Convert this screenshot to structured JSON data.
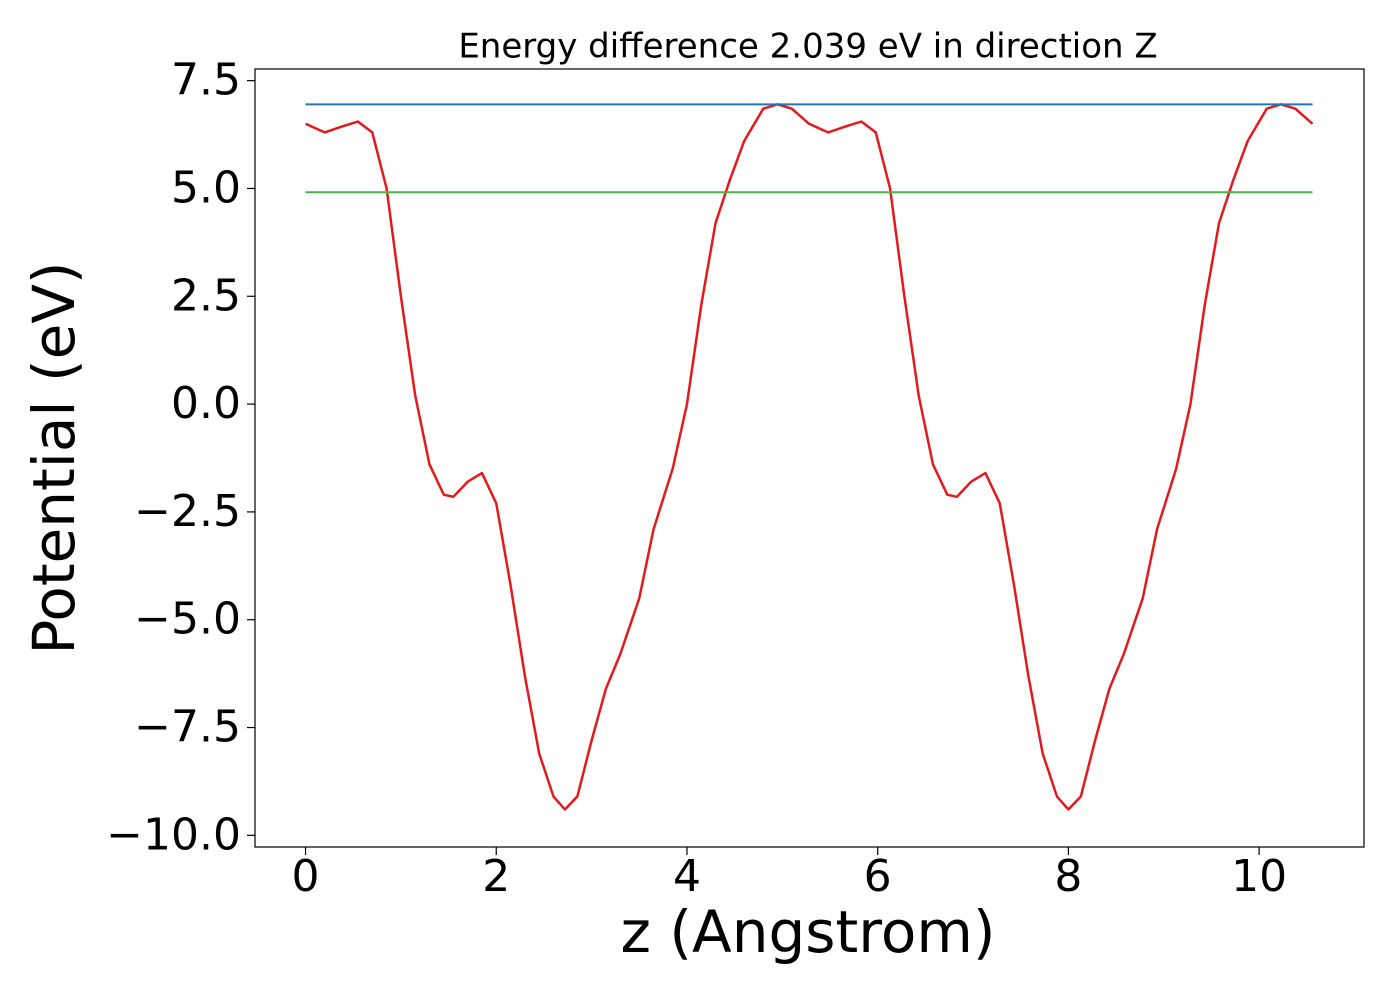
{
  "chart_data": {
    "type": "line",
    "title": "Energy difference 2.039 eV in direction Z",
    "xlabel": "z (Angstrom)",
    "ylabel": "Potential (eV)",
    "xlim": [
      -0.53,
      11.1
    ],
    "ylim": [
      -10.27,
      7.77
    ],
    "xticks": [
      0,
      2,
      4,
      6,
      8,
      10
    ],
    "yticks": [
      {
        "value": -10,
        "label": "−10.0"
      },
      {
        "value": -7.5,
        "label": "−7.5"
      },
      {
        "value": -5,
        "label": "−5.0"
      },
      {
        "value": -2.5,
        "label": "−2.5"
      },
      {
        "value": 0,
        "label": "0.0"
      },
      2.5,
      {
        "value": 5,
        "label": "5.0"
      },
      7.5
    ],
    "grid": false,
    "series": [
      {
        "color": "#e31a1c",
        "x": [
          0,
          0.2,
          0.4,
          0.55,
          0.7,
          0.85,
          1.0,
          1.15,
          1.3,
          1.45,
          1.55,
          1.7,
          1.85,
          2.0,
          2.15,
          2.3,
          2.45,
          2.6,
          2.72,
          2.85,
          3.0,
          3.15,
          3.3,
          3.5,
          3.65,
          3.85,
          4.0,
          4.15,
          4.3,
          4.45,
          4.6,
          4.8,
          4.95,
          5.1,
          5.28,
          5.48,
          5.68,
          5.83,
          5.98,
          6.13,
          6.28,
          6.43,
          6.58,
          6.73,
          6.83,
          6.98,
          7.13,
          7.28,
          7.43,
          7.58,
          7.73,
          7.88,
          8.0,
          8.13,
          8.28,
          8.43,
          8.58,
          8.78,
          8.93,
          9.13,
          9.28,
          9.43,
          9.58,
          9.73,
          9.88,
          10.08,
          10.23,
          10.38,
          10.56
        ],
        "values": [
          6.5,
          6.3,
          6.45,
          6.55,
          6.3,
          5.0,
          2.5,
          0.2,
          -1.4,
          -2.1,
          -2.15,
          -1.8,
          -1.6,
          -2.3,
          -4.2,
          -6.3,
          -8.1,
          -9.1,
          -9.4,
          -9.1,
          -7.8,
          -6.6,
          -5.8,
          -4.5,
          -2.9,
          -1.5,
          0.0,
          2.3,
          4.2,
          5.2,
          6.1,
          6.85,
          6.95,
          6.85,
          6.5,
          6.3,
          6.45,
          6.55,
          6.3,
          5.0,
          2.5,
          0.2,
          -1.4,
          -2.1,
          -2.15,
          -1.8,
          -1.6,
          -2.3,
          -4.2,
          -6.3,
          -8.1,
          -9.1,
          -9.4,
          -9.1,
          -7.8,
          -6.6,
          -5.8,
          -4.5,
          -2.9,
          -1.5,
          0.0,
          2.3,
          4.2,
          5.2,
          6.1,
          6.85,
          6.95,
          6.85,
          6.5
        ]
      },
      {
        "color": "#1f77b4",
        "x": [
          0,
          10.56
        ],
        "values": [
          6.95,
          6.95
        ]
      },
      {
        "color": "#4daf4a",
        "x": [
          0,
          10.56
        ],
        "values": [
          4.911,
          4.911
        ]
      }
    ]
  }
}
